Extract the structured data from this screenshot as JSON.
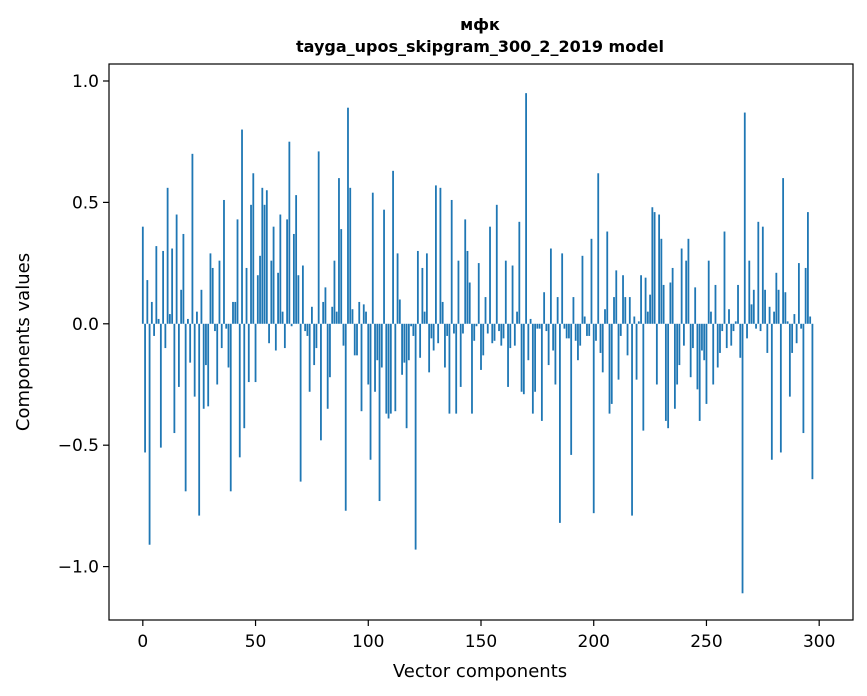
{
  "chart_data": {
    "type": "bar",
    "title_line1": "мфк",
    "title_line2": "tayga_upos_skipgram_300_2_2019 model",
    "xlabel": "Vector components",
    "ylabel": "Components values",
    "xlim": [
      -15,
      315
    ],
    "ylim": [
      -1.22,
      1.07
    ],
    "xticks": [
      0,
      50,
      100,
      150,
      200,
      250,
      300
    ],
    "xtick_labels": [
      "0",
      "50",
      "100",
      "150",
      "200",
      "250",
      "300"
    ],
    "yticks": [
      -1.0,
      -0.5,
      0.0,
      0.5,
      1.0
    ],
    "ytick_labels": [
      "−1.0",
      "−0.5",
      "0.0",
      "0.5",
      "1.0"
    ],
    "bar_color": "#1f77b4",
    "values": [
      0.4,
      -0.53,
      0.18,
      -0.91,
      0.09,
      -0.05,
      0.32,
      0.02,
      -0.51,
      0.3,
      -0.1,
      0.56,
      0.04,
      0.31,
      -0.45,
      0.45,
      -0.26,
      0.14,
      0.37,
      -0.69,
      0.02,
      -0.16,
      0.7,
      -0.3,
      0.05,
      -0.79,
      0.14,
      -0.35,
      -0.17,
      -0.34,
      0.29,
      0.23,
      -0.03,
      -0.25,
      0.26,
      -0.1,
      0.51,
      -0.02,
      -0.18,
      -0.69,
      0.09,
      0.09,
      0.43,
      -0.55,
      0.8,
      -0.43,
      0.23,
      -0.24,
      0.49,
      0.62,
      -0.24,
      0.2,
      0.28,
      0.56,
      0.49,
      0.55,
      -0.08,
      0.26,
      0.4,
      -0.11,
      0.21,
      0.45,
      0.05,
      -0.1,
      0.43,
      0.75,
      -0.01,
      0.37,
      0.53,
      0.2,
      -0.65,
      0.24,
      -0.03,
      -0.05,
      -0.28,
      0.07,
      -0.17,
      -0.1,
      0.71,
      -0.48,
      0.09,
      0.15,
      -0.35,
      -0.22,
      0.07,
      0.26,
      0.05,
      0.6,
      0.39,
      -0.09,
      -0.77,
      0.89,
      0.56,
      0.06,
      -0.13,
      -0.13,
      0.09,
      -0.36,
      0.08,
      0.05,
      -0.25,
      -0.56,
      0.54,
      -0.28,
      -0.15,
      -0.73,
      -0.18,
      0.47,
      -0.37,
      -0.39,
      -0.37,
      0.63,
      -0.36,
      0.29,
      0.1,
      -0.21,
      -0.16,
      -0.43,
      -0.15,
      -0.01,
      -0.05,
      -0.93,
      0.3,
      -0.14,
      0.23,
      0.05,
      0.29,
      -0.2,
      -0.06,
      -0.11,
      0.57,
      -0.08,
      0.56,
      0.09,
      -0.18,
      -0.05,
      -0.37,
      0.51,
      -0.04,
      -0.37,
      0.26,
      -0.26,
      -0.04,
      0.43,
      0.3,
      0.17,
      -0.37,
      -0.07,
      -0.01,
      0.25,
      -0.19,
      -0.13,
      0.11,
      -0.04,
      0.4,
      -0.08,
      -0.07,
      0.49,
      -0.03,
      -0.09,
      -0.06,
      0.26,
      -0.26,
      -0.1,
      0.24,
      -0.09,
      0.05,
      0.42,
      -0.28,
      -0.29,
      0.95,
      -0.15,
      0.02,
      -0.37,
      -0.28,
      -0.02,
      -0.02,
      -0.4,
      0.13,
      -0.03,
      -0.17,
      0.31,
      -0.11,
      -0.25,
      0.11,
      -0.82,
      0.29,
      -0.02,
      -0.06,
      -0.06,
      -0.54,
      0.11,
      -0.07,
      -0.15,
      -0.09,
      0.28,
      0.03,
      -0.05,
      -0.05,
      0.35,
      -0.78,
      -0.07,
      0.62,
      -0.12,
      -0.2,
      0.06,
      0.38,
      -0.37,
      -0.33,
      0.11,
      0.22,
      -0.23,
      -0.05,
      0.2,
      0.11,
      -0.13,
      0.11,
      -0.79,
      0.03,
      -0.23,
      0.01,
      0.2,
      -0.44,
      0.19,
      0.05,
      0.12,
      0.48,
      0.46,
      -0.25,
      0.45,
      0.35,
      0.16,
      -0.4,
      -0.43,
      0.17,
      0.23,
      -0.35,
      -0.25,
      -0.17,
      0.31,
      -0.09,
      0.26,
      0.35,
      -0.22,
      -0.1,
      0.15,
      -0.27,
      -0.4,
      -0.11,
      -0.15,
      -0.33,
      0.26,
      0.05,
      -0.25,
      0.16,
      -0.18,
      -0.12,
      -0.03,
      0.38,
      -0.1,
      0.06,
      -0.09,
      -0.03,
      0.01,
      0.16,
      -0.14,
      -1.11,
      0.87,
      -0.06,
      0.26,
      0.08,
      0.14,
      -0.02,
      0.42,
      -0.03,
      0.4,
      0.14,
      -0.12,
      0.07,
      -0.56,
      0.05,
      0.21,
      0.14,
      -0.53,
      0.6,
      0.13,
      0.01,
      -0.3,
      -0.12,
      0.04,
      -0.08,
      0.25,
      -0.02,
      -0.45,
      0.23,
      0.46,
      0.03,
      -0.64
    ],
    "x": "index"
  }
}
